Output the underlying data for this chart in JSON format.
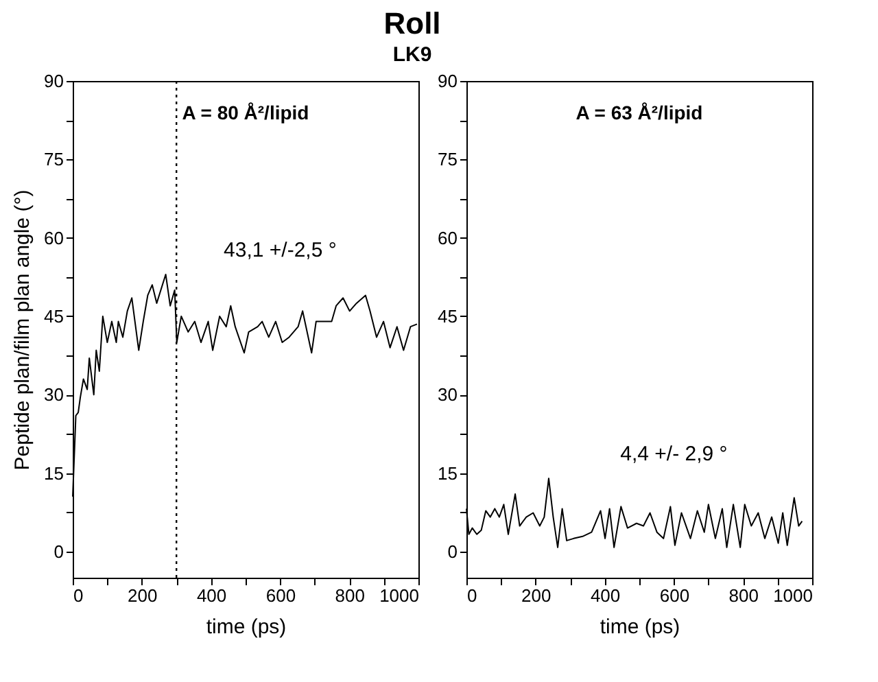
{
  "chart_data": [
    {
      "type": "line",
      "title": "Roll",
      "subtitle": "LK9",
      "xlabel": "time (ps)",
      "ylabel": "Peptide plan/film plan angle (°)",
      "annotations": [
        "A = 80 Å²/lipid",
        "43,1 +/-2,5 °"
      ],
      "x": [
        0,
        9,
        16,
        22,
        31,
        42,
        48,
        61,
        68,
        77,
        87,
        100,
        113,
        126,
        132,
        145,
        158,
        171,
        191,
        204,
        217,
        230,
        243,
        269,
        282,
        295,
        301,
        314,
        334,
        353,
        371,
        392,
        405,
        425,
        444,
        457,
        470,
        496,
        509,
        535,
        548,
        567,
        587,
        606,
        626,
        652,
        665,
        691,
        704,
        730,
        749,
        762,
        782,
        801,
        821,
        847,
        860,
        879,
        899,
        918,
        938,
        957,
        977,
        996
      ],
      "series": [
        {
          "color": "#000000",
          "values": [
            10.5,
            26,
            26.6,
            29.5,
            33,
            31,
            37,
            30,
            38.5,
            34.5,
            45,
            40,
            44,
            40,
            44,
            41,
            46,
            48.5,
            38.5,
            44,
            49,
            51,
            47.5,
            53,
            47,
            50,
            40,
            45,
            42,
            44,
            40,
            44,
            38.5,
            45,
            43,
            47,
            43,
            38,
            42,
            43,
            44,
            41,
            44,
            40,
            41,
            43,
            46,
            38,
            44,
            44,
            44,
            47,
            48.5,
            46,
            47.5,
            49,
            46,
            41,
            44,
            39,
            43,
            38.5,
            43,
            43.5
          ]
        }
      ],
      "ref_lines": [
        {
          "axis": "x",
          "value": 300,
          "line_style": "dotted",
          "color": "#000000"
        }
      ],
      "xlim": [
        0,
        1000
      ],
      "ylim": [
        -5,
        90
      ],
      "xticks": [
        0,
        {
          "value": 100,
          "label": null
        },
        200,
        {
          "value": 300,
          "label": null
        },
        400,
        {
          "value": 500,
          "label": null
        },
        600,
        {
          "value": 700,
          "label": null
        },
        800,
        {
          "value": 900,
          "label": null
        },
        1000
      ],
      "yticks": [
        0,
        {
          "value": 7.5,
          "label": null
        },
        15,
        {
          "value": 22.5,
          "label": null
        },
        30,
        {
          "value": 37.5,
          "label": null
        },
        45,
        {
          "value": 52.5,
          "label": null
        },
        60,
        {
          "value": 67.5,
          "label": null
        },
        75,
        {
          "value": 82.5,
          "label": null
        },
        90
      ],
      "grid": false,
      "marker": "none",
      "line_style": "solid"
    },
    {
      "type": "line",
      "xlabel": "time (ps)",
      "annotations": [
        "A = 63 Å²/lipid",
        "4,4 +/-  2,9 °"
      ],
      "x": [
        0,
        7,
        17,
        30,
        43,
        56,
        69,
        82,
        95,
        108,
        121,
        141,
        154,
        173,
        193,
        212,
        225,
        238,
        251,
        264,
        277,
        290,
        310,
        336,
        362,
        388,
        401,
        414,
        427,
        447,
        466,
        492,
        512,
        531,
        551,
        570,
        590,
        603,
        622,
        648,
        668,
        688,
        700,
        720,
        740,
        753,
        772,
        792,
        805,
        824,
        844,
        863,
        883,
        902,
        915,
        928,
        948,
        961,
        971
      ],
      "series": [
        {
          "color": "#000000",
          "values": [
            8.2,
            3.3,
            4.5,
            3.3,
            4.1,
            7.8,
            6.6,
            8.2,
            6.6,
            9,
            3.3,
            11,
            4.9,
            6.6,
            7.4,
            4.9,
            6.6,
            14,
            6.6,
            0.8,
            8.2,
            2.1,
            2.5,
            2.9,
            3.7,
            7.8,
            2.5,
            8.2,
            0.8,
            8.6,
            4.5,
            5.4,
            4.9,
            7.4,
            3.7,
            2.5,
            8.6,
            1.2,
            7.4,
            2.5,
            7.8,
            3.7,
            9,
            2.5,
            8.2,
            0.8,
            9,
            0.8,
            9,
            4.9,
            7.4,
            2.5,
            6.6,
            1.6,
            7.4,
            1.2,
            10.3,
            4.9,
            5.8
          ]
        }
      ],
      "xlim": [
        0,
        1000
      ],
      "ylim": [
        -5,
        90
      ],
      "xticks": [
        0,
        {
          "value": 100,
          "label": null
        },
        200,
        {
          "value": 300,
          "label": null
        },
        400,
        {
          "value": 500,
          "label": null
        },
        600,
        {
          "value": 700,
          "label": null
        },
        800,
        {
          "value": 900,
          "label": null
        },
        1000
      ],
      "yticks": [
        0,
        {
          "value": 7.5,
          "label": null
        },
        15,
        {
          "value": 22.5,
          "label": null
        },
        30,
        {
          "value": 37.5,
          "label": null
        },
        45,
        {
          "value": 52.5,
          "label": null
        },
        60,
        {
          "value": 67.5,
          "label": null
        },
        75,
        {
          "value": 82.5,
          "label": null
        },
        90
      ],
      "grid": false,
      "marker": "none",
      "line_style": "solid"
    }
  ]
}
